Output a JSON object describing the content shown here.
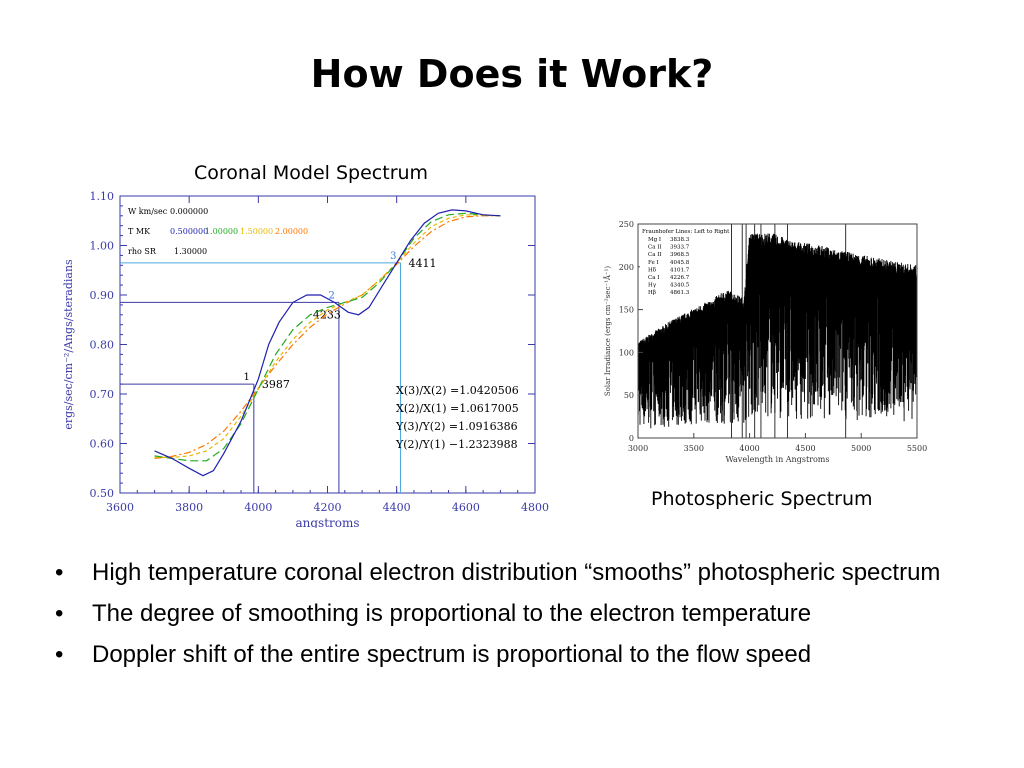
{
  "title": "How Does it Work?",
  "captions": {
    "left": "Coronal Model Spectrum",
    "right": "Photospheric Spectrum"
  },
  "bullets": [
    "High temperature coronal electron distribution “smooths” photospheric spectrum",
    "The degree of smoothing is proportional to the electron temperature",
    "Doppler shift of the entire spectrum is proportional to the flow speed"
  ],
  "bullet_glyph": "•",
  "chart_data": [
    {
      "type": "line",
      "xlabel": "angstroms",
      "ylabel": "ergs/sec/cm⁻²/Angs/steradians",
      "xlim": [
        3600,
        4800
      ],
      "ylim": [
        0.5,
        1.1
      ],
      "xticks": [
        3600,
        3800,
        4000,
        4200,
        4400,
        4600,
        4800
      ],
      "yticks": [
        "0.50",
        "0.60",
        "0.70",
        "0.80",
        "0.90",
        "1.00",
        "1.10"
      ],
      "grid": false,
      "legend": {
        "w_label": "W km/sec",
        "w_value": "0.000000",
        "t_label": "T MK",
        "t_values": [
          "0.500000",
          "1.00000",
          "1.50000",
          "2.00000"
        ],
        "rho_label": "rho SR",
        "rho_value": "1.30000",
        "colors": [
          "#1f1fb0",
          "#22aa22",
          "#e6b800",
          "#ff7700"
        ]
      },
      "series": [
        {
          "name": "0.500000",
          "color": "#1f1fb0",
          "dash": "",
          "x": [
            3700,
            3750,
            3800,
            3840,
            3870,
            3900,
            3950,
            4000,
            4030,
            4060,
            4100,
            4140,
            4180,
            4220,
            4260,
            4290,
            4320,
            4360,
            4400,
            4440,
            4480,
            4520,
            4560,
            4600,
            4650,
            4700
          ],
          "y": [
            0.585,
            0.57,
            0.55,
            0.535,
            0.545,
            0.58,
            0.645,
            0.73,
            0.8,
            0.845,
            0.885,
            0.9,
            0.9,
            0.885,
            0.865,
            0.86,
            0.875,
            0.92,
            0.965,
            1.01,
            1.045,
            1.065,
            1.072,
            1.07,
            1.062,
            1.06
          ]
        },
        {
          "name": "1.00000",
          "color": "#22aa22",
          "dash": "8,4",
          "x": [
            3700,
            3750,
            3800,
            3850,
            3900,
            3950,
            4000,
            4050,
            4100,
            4150,
            4200,
            4250,
            4300,
            4350,
            4400,
            4450,
            4500,
            4550,
            4600,
            4650,
            4700
          ],
          "y": [
            0.575,
            0.57,
            0.565,
            0.565,
            0.59,
            0.64,
            0.71,
            0.78,
            0.83,
            0.86,
            0.875,
            0.885,
            0.895,
            0.925,
            0.965,
            1.015,
            1.048,
            1.062,
            1.065,
            1.062,
            1.06
          ]
        },
        {
          "name": "1.50000",
          "color": "#e6b800",
          "dash": "4,3",
          "x": [
            3700,
            3750,
            3800,
            3850,
            3900,
            3950,
            4000,
            4050,
            4100,
            4150,
            4200,
            4250,
            4300,
            4350,
            4400,
            4450,
            4500,
            4550,
            4600,
            4650,
            4700
          ],
          "y": [
            0.572,
            0.572,
            0.575,
            0.585,
            0.61,
            0.655,
            0.71,
            0.765,
            0.81,
            0.845,
            0.87,
            0.885,
            0.9,
            0.93,
            0.965,
            1.005,
            1.038,
            1.055,
            1.062,
            1.061,
            1.06
          ]
        },
        {
          "name": "2.00000",
          "color": "#ff7700",
          "dash": "7,3,2,3",
          "x": [
            3700,
            3750,
            3800,
            3850,
            3900,
            3950,
            4000,
            4050,
            4100,
            4150,
            4200,
            4250,
            4300,
            4350,
            4400,
            4450,
            4500,
            4550,
            4600,
            4650,
            4700
          ],
          "y": [
            0.57,
            0.574,
            0.582,
            0.598,
            0.625,
            0.665,
            0.712,
            0.758,
            0.8,
            0.835,
            0.862,
            0.882,
            0.9,
            0.93,
            0.962,
            0.998,
            1.028,
            1.048,
            1.058,
            1.06,
            1.06
          ]
        }
      ],
      "markers": [
        {
          "id": "1",
          "label": "3987",
          "x": 3987,
          "y": 0.72
        },
        {
          "id": "2",
          "label": "4233",
          "x": 4233,
          "y": 0.885
        },
        {
          "id": "3",
          "label": "4411",
          "x": 4411,
          "y": 0.965
        }
      ],
      "annotations": [
        "X(3)/X(2) =1.0420506",
        "X(2)/X(1) =1.0617005",
        "Y(3)/Y(2) =1.0916386",
        "Y(2)/Y(1) −1.2323988"
      ]
    },
    {
      "type": "line",
      "xlabel": "Wavelength in Angstroms",
      "ylabel": "Solar Irradiance (ergs cm⁻²sec⁻¹Å⁻¹)",
      "xlim": [
        3000,
        5500
      ],
      "ylim": [
        0,
        250
      ],
      "xticks": [
        3000,
        3500,
        4000,
        4500,
        5000,
        5500
      ],
      "yticks": [
        0,
        50,
        100,
        150,
        200,
        250
      ],
      "grid": false,
      "legend": {
        "title": "Fraunhofer Lines: Left to Right",
        "items": [
          {
            "name": "Mg I",
            "value": "3838.3"
          },
          {
            "name": "Ca II",
            "value": "3933.7"
          },
          {
            "name": "Ca II",
            "value": "3968.5"
          },
          {
            "name": "Fe I",
            "value": "4045.8"
          },
          {
            "name": "Hδ",
            "value": "4101.7"
          },
          {
            "name": "Ca I",
            "value": "4226.7"
          },
          {
            "name": "Hγ",
            "value": "4340.5"
          },
          {
            "name": "Hβ",
            "value": "4861.3"
          }
        ]
      },
      "series": [
        {
          "name": "",
          "color": "#000000",
          "x": [
            3000,
            3300,
            3600,
            3800,
            3950,
            4000,
            4200,
            4400,
            4600,
            4800,
            5000,
            5200,
            5400,
            5500
          ],
          "y": [
            110,
            135,
            155,
            170,
            160,
            235,
            235,
            225,
            222,
            215,
            210,
            205,
            200,
            198
          ]
        }
      ],
      "fraunhofer_lines": [
        3838.3,
        3933.7,
        3968.5,
        4045.8,
        4101.7,
        4226.7,
        4340.5,
        4861.3
      ]
    }
  ]
}
